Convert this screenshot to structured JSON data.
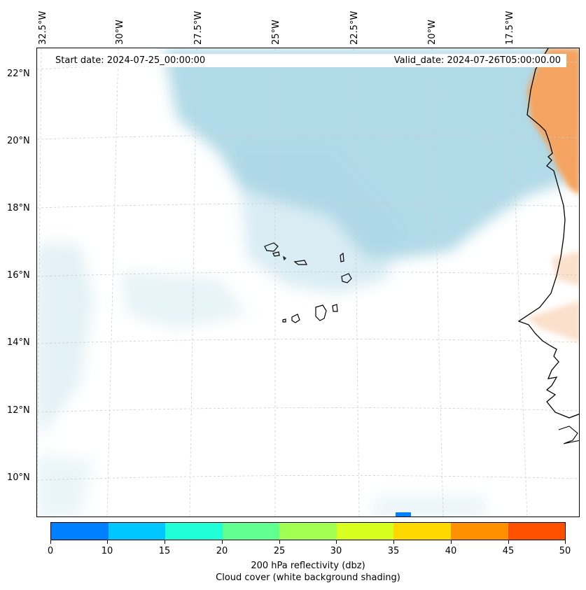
{
  "map": {
    "start_date": "Start date: 2024-07-25_00:00:00",
    "valid_date": "Valid_date: 2024-07-26T05:00:00.00",
    "lon_labels": [
      "32.5°W",
      "30°W",
      "27.5°W",
      "25°W",
      "22.5°W",
      "20°W",
      "17.5°W"
    ],
    "lat_labels": [
      "22°N",
      "20°N",
      "18°N",
      "16°N",
      "14°N",
      "12°N",
      "10°N"
    ],
    "colors": {
      "cloud": "#add8e6",
      "land_warm": "#f4a460",
      "land_light": "#fbe0cc",
      "coast": "#000000",
      "grid": "#cccccc"
    }
  },
  "colorbar": {
    "ticks": [
      "0",
      "10",
      "15",
      "20",
      "25",
      "30",
      "35",
      "40",
      "45",
      "50"
    ],
    "colors": [
      "#0080ff",
      "#00c8ff",
      "#20ffd8",
      "#60ff90",
      "#a0ff50",
      "#d8ff20",
      "#ffd800",
      "#ff9000",
      "#ff5000"
    ],
    "title": "200 hPa reflectivity (dbz)",
    "subtitle": "Cloud cover (white background shading)"
  }
}
